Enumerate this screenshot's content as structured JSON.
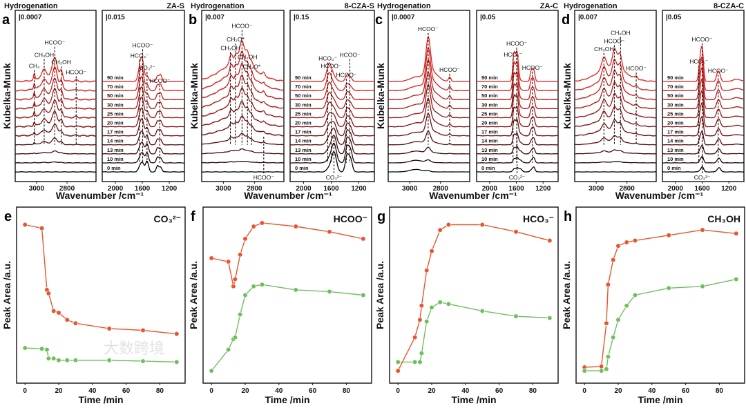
{
  "chart_data": {
    "spectra_panels": [
      {
        "letter": "a",
        "title": "Hydrogenation",
        "sample": "ZA-S",
        "sample_color": "#111111",
        "ylabel": "Kubelka-Munk",
        "xlabel": "Wavenumber /cm⁻¹",
        "left": {
          "scale_bar": "|0.0007",
          "xlim": [
            3140,
            2610
          ],
          "ticks": [
            3000,
            2800
          ],
          "noise": 1.0,
          "amp_scale": 30,
          "peaks": [
            {
              "wn": 3015,
              "w": 4,
              "a0": 0,
              "a1": 0.3
            },
            {
              "wn": 2950,
              "w": 14,
              "a0": 0,
              "a1": 0.35
            },
            {
              "wn": 2880,
              "w": 16,
              "a0": 0,
              "a1": 1.0
            },
            {
              "wn": 2930,
              "w": 60,
              "a0": 0,
              "a1": 0.25
            },
            {
              "wn": 2838,
              "w": 9,
              "a0": 0,
              "a1": 0.45
            },
            {
              "wn": 2740,
              "w": 8,
              "a0": 0,
              "a1": 0.08
            }
          ],
          "labels": [
            {
              "text": "CH₄",
              "wn": 3015
            },
            {
              "text": "CH₃OH",
              "wn": 2950
            },
            {
              "text": "HCOO⁻",
              "wn": 2880
            },
            {
              "text": "CH₃OH",
              "wn": 2838
            },
            {
              "text": "HCOO⁻",
              "wn": 2740
            }
          ]
        },
        "right": {
          "scale_bar": "|0.015",
          "xlim": [
            2195,
            975
          ],
          "ticks": [
            2000,
            1600,
            1200
          ],
          "noise": 0.3,
          "amp_scale": 28,
          "peaks": [
            {
              "wn": 1625,
              "w": 28,
              "a0": 0.35,
              "a1": 1.05
            },
            {
              "wn": 1590,
              "w": 22,
              "a0": 0.3,
              "a1": 0.55
            },
            {
              "wn": 1530,
              "w": 22,
              "a0": 0.55,
              "a1": 0.3
            },
            {
              "wn": 1375,
              "w": 18,
              "a0": 0.3,
              "a1": 0.28
            },
            {
              "wn": 1330,
              "w": 20,
              "a0": 0.25,
              "a1": 0.35
            }
          ],
          "labels": [
            {
              "text": "HCO₃⁻",
              "wn": 1640
            },
            {
              "text": "HCOO⁻",
              "wn": 1595
            },
            {
              "text": "CO₃²⁻",
              "wn": 1530
            },
            {
              "text": "HCOO⁻",
              "wn": 1340
            }
          ]
        }
      },
      {
        "letter": "b",
        "title": "Hydrogenation",
        "sample": "8-CZA-S",
        "sample_color": "#e8552e",
        "ylabel": "Kubelka-Munk",
        "xlabel": "Wavenumber /cm⁻¹",
        "left": {
          "scale_bar": "|0.007",
          "xlim": [
            3140,
            2610
          ],
          "ticks": [
            3000,
            2800
          ],
          "noise": 0.9,
          "amp_scale": 30,
          "peaks": [
            {
              "wn": 2950,
              "w": 10,
              "a0": 0,
              "a1": 0.5
            },
            {
              "wn": 2920,
              "w": 10,
              "a0": 0,
              "a1": 0.4
            },
            {
              "wn": 2880,
              "w": 16,
              "a0": 0,
              "a1": 1.1
            },
            {
              "wn": 2905,
              "w": 110,
              "a0": 0,
              "a1": 0.9
            },
            {
              "wn": 2845,
              "w": 10,
              "a0": 0,
              "a1": 0.6
            },
            {
              "wn": 2820,
              "w": 10,
              "a0": 0,
              "a1": 0.35
            },
            {
              "wn": 2740,
              "w": 7,
              "a0": 0,
              "a1": 0.15
            }
          ],
          "labels": [
            {
              "text": "CH₃OH",
              "wn": 2955
            },
            {
              "text": "CH₃O*",
              "wn": 2922
            },
            {
              "text": "HCOO⁻",
              "wn": 2880
            },
            {
              "text": "CH₃OH",
              "wn": 2845
            },
            {
              "text": "CH₃O*",
              "wn": 2818
            },
            {
              "text": "HCOO⁻",
              "wn": 2740,
              "position": "bottom"
            }
          ]
        },
        "right": {
          "scale_bar": "|0.15",
          "xlim": [
            2195,
            975
          ],
          "ticks": [
            2000,
            1600,
            1200
          ],
          "noise": 0.3,
          "amp_scale": 26,
          "peaks": [
            {
              "wn": 1630,
              "w": 35,
              "a0": 0.2,
              "a1": 1.0
            },
            {
              "wn": 1560,
              "w": 35,
              "a0": 1.1,
              "a1": 0.25
            },
            {
              "wn": 1370,
              "w": 25,
              "a0": 0.9,
              "a1": 0.35
            },
            {
              "wn": 1320,
              "w": 25,
              "a0": 0.7,
              "a1": 0.2
            }
          ],
          "labels": [
            {
              "text": "HCO₃⁻",
              "wn": 1650
            },
            {
              "text": "HCOO⁻",
              "wn": 1600
            },
            {
              "text": "HCOO⁻",
              "wn": 1380
            },
            {
              "text": "HCOO⁻",
              "wn": 1330
            },
            {
              "text": "CO₃²⁻",
              "wn": 1560,
              "position": "bottom"
            }
          ]
        }
      },
      {
        "letter": "c",
        "title": "Hydrogenation",
        "sample": "ZA-C",
        "sample_color": "#999999",
        "ylabel": "Kubelka-Munk",
        "xlabel": "Wavenumber /cm⁻¹",
        "left": {
          "scale_bar": "|0.0007",
          "xlim": [
            3140,
            2610
          ],
          "ticks": [
            3000,
            2800
          ],
          "noise": 0.3,
          "amp_scale": 30,
          "peaks": [
            {
              "wn": 2880,
              "w": 14,
              "a0": 0.05,
              "a1": 1.7
            },
            {
              "wn": 2860,
              "w": 40,
              "a0": 0,
              "a1": 0.5
            },
            {
              "wn": 2960,
              "w": 40,
              "a0": 0.12,
              "a1": 0.2
            },
            {
              "wn": 2740,
              "w": 8,
              "a0": 0,
              "a1": 0.2
            }
          ],
          "labels": [
            {
              "text": "HCOO⁻",
              "wn": 2880
            },
            {
              "text": "HCOO⁻",
              "wn": 2740
            }
          ]
        },
        "right": {
          "scale_bar": "|0.05",
          "xlim": [
            2195,
            975
          ],
          "ticks": [
            2000,
            1600,
            1200
          ],
          "noise": 0.25,
          "amp_scale": 28,
          "peaks": [
            {
              "wn": 1635,
              "w": 18,
              "a0": 0.15,
              "a1": 1.4
            },
            {
              "wn": 1590,
              "w": 20,
              "a0": 0.2,
              "a1": 1.5
            },
            {
              "wn": 1540,
              "w": 25,
              "a0": 0.15,
              "a1": 0.05
            },
            {
              "wn": 1375,
              "w": 18,
              "a0": 0.1,
              "a1": 0.55
            },
            {
              "wn": 1340,
              "w": 18,
              "a0": 0.25,
              "a1": 0.55
            }
          ],
          "labels": [
            {
              "text": "HCO₃⁻",
              "wn": 1650
            },
            {
              "text": "HCOO⁻",
              "wn": 1595
            },
            {
              "text": "HCOO⁻",
              "wn": 1360
            },
            {
              "text": "CO₃²⁻",
              "wn": 1590,
              "position": "bottom"
            }
          ]
        }
      },
      {
        "letter": "d",
        "title": "Hydrogenation",
        "sample": "8-CZA-C",
        "sample_color": "#6fbf5f",
        "ylabel": "Kubelka-Munk",
        "xlabel": "Wavenumber /cm⁻¹",
        "left": {
          "scale_bar": "|0.007",
          "xlim": [
            3140,
            2610
          ],
          "ticks": [
            3000,
            2800
          ],
          "noise": 0.6,
          "amp_scale": 30,
          "peaks": [
            {
              "wn": 2950,
              "w": 14,
              "a0": 0,
              "a1": 0.6
            },
            {
              "wn": 2880,
              "w": 14,
              "a0": 0,
              "a1": 0.9
            },
            {
              "wn": 2845,
              "w": 12,
              "a0": 0,
              "a1": 0.75
            },
            {
              "wn": 2900,
              "w": 90,
              "a0": 0,
              "a1": 0.7
            },
            {
              "wn": 2740,
              "w": 8,
              "a0": 0,
              "a1": 0.12
            }
          ],
          "labels": [
            {
              "text": "CH₃OH",
              "wn": 2950
            },
            {
              "text": "HCOO⁻",
              "wn": 2882
            },
            {
              "text": "CH₃OH",
              "wn": 2842
            },
            {
              "text": "HCOO⁻",
              "wn": 2740
            }
          ]
        },
        "right": {
          "scale_bar": "|0.05",
          "xlim": [
            2195,
            975
          ],
          "ticks": [
            2000,
            1600,
            1200
          ],
          "noise": 0.25,
          "amp_scale": 26,
          "peaks": [
            {
              "wn": 1625,
              "w": 22,
              "a0": 0.1,
              "a1": 1.3
            },
            {
              "wn": 1595,
              "w": 18,
              "a0": 0.25,
              "a1": 1.3
            },
            {
              "wn": 1370,
              "w": 20,
              "a0": 0.1,
              "a1": 0.4
            },
            {
              "wn": 1340,
              "w": 20,
              "a0": 0.2,
              "a1": 0.35
            },
            {
              "wn": 1080,
              "w": 60,
              "a0": 0,
              "a1": 0.12
            }
          ],
          "labels": [
            {
              "text": "HCO₃⁻",
              "wn": 1650
            },
            {
              "text": "HCOO⁻",
              "wn": 1600
            },
            {
              "text": "HCOO⁻",
              "wn": 1360
            },
            {
              "text": "CO₃²⁻",
              "wn": 1600,
              "position": "bottom"
            }
          ]
        }
      }
    ],
    "time_labels": [
      "0 min",
      "10 min",
      "13 min",
      "14 min",
      "17 min",
      "20 min",
      "25 min",
      "30 min",
      "50 min",
      "70 min",
      "90 min"
    ],
    "growth": [
      0,
      0.04,
      0.12,
      0.28,
      0.48,
      0.62,
      0.73,
      0.81,
      0.89,
      0.95,
      1
    ],
    "trace_color_start": "#000000",
    "trace_color_end": "#e8201c",
    "kinetics_panels": [
      {
        "letter": "e",
        "species": "CO₃²⁻",
        "type": "line",
        "xlabel": "Time /min",
        "ylabel": "Peak Area /a.u.",
        "xlim": [
          -5,
          95
        ],
        "ylim": [
          0,
          100
        ],
        "xticks": [
          0,
          20,
          40,
          60,
          80
        ],
        "x": [
          0,
          10,
          13,
          14,
          17,
          20,
          25,
          30,
          50,
          70,
          90
        ],
        "series": [
          {
            "name": "8-CZA-S",
            "color": "#e8552e",
            "values": [
              90,
              88,
              53,
              51,
              41,
              40,
              36,
              34,
              31,
              30,
              28
            ]
          },
          {
            "name": "8-CZA-C",
            "color": "#6fbf5f",
            "values": [
              20,
              19.5,
              19,
              14,
              14,
              13,
              13,
              13,
              13,
              12.5,
              12
            ]
          }
        ]
      },
      {
        "letter": "f",
        "species": "HCOO⁻",
        "type": "line",
        "xlabel": "Time /min",
        "ylabel": "Peak Area /a.u.",
        "xlim": [
          -5,
          95
        ],
        "ylim": [
          0,
          100
        ],
        "xticks": [
          0,
          20,
          40,
          60,
          80
        ],
        "x": [
          0,
          10,
          13,
          14,
          17,
          20,
          25,
          30,
          50,
          70,
          90
        ],
        "series": [
          {
            "name": "8-CZA-S",
            "color": "#e8552e",
            "values": [
              71,
              69,
              55,
              59,
              73,
              82,
              89,
              91,
              89,
              86,
              82
            ]
          },
          {
            "name": "8-CZA-C",
            "color": "#6fbf5f",
            "values": [
              7,
              19,
              25,
              26,
              39,
              50,
              55,
              56,
              53,
              52,
              50
            ]
          }
        ]
      },
      {
        "letter": "g",
        "species": "HCO₃⁻",
        "type": "line",
        "xlabel": "Time /min",
        "ylabel": "Peak Area /a.u.",
        "xlim": [
          -5,
          95
        ],
        "ylim": [
          0,
          100
        ],
        "xticks": [
          0,
          20,
          40,
          60,
          80
        ],
        "x": [
          0,
          10,
          13,
          14,
          17,
          20,
          25,
          30,
          50,
          70,
          90
        ],
        "series": [
          {
            "name": "8-CZA-S",
            "color": "#e8552e",
            "values": [
              7,
              26,
              36,
              44,
              64,
              75,
              87,
              90,
              90,
              86,
              81
            ]
          },
          {
            "name": "8-CZA-C",
            "color": "#6fbf5f",
            "values": [
              12,
              12,
              12,
              17,
              35,
              43,
              46,
              45,
              41,
              38,
              37
            ]
          }
        ]
      },
      {
        "letter": "h",
        "species": "CH₃OH",
        "type": "line",
        "xlabel": "Time /min",
        "ylabel": "Peak Area /a.u.",
        "xlim": [
          -5,
          95
        ],
        "ylim": [
          0,
          100
        ],
        "xticks": [
          0,
          20,
          40,
          60,
          80
        ],
        "x": [
          0,
          10,
          13,
          14,
          17,
          20,
          25,
          30,
          50,
          70,
          90
        ],
        "series": [
          {
            "name": "8-CZA-S",
            "color": "#e8552e",
            "values": [
              9,
              9.5,
              34,
              56,
              70,
              78,
              80,
              81,
              84,
              87,
              85
            ]
          },
          {
            "name": "8-CZA-C",
            "color": "#6fbf5f",
            "values": [
              7,
              7,
              8,
              15,
              26,
              36,
              44,
              50,
              54,
              55,
              59
            ]
          }
        ]
      }
    ]
  },
  "watermark": "大数跨境"
}
